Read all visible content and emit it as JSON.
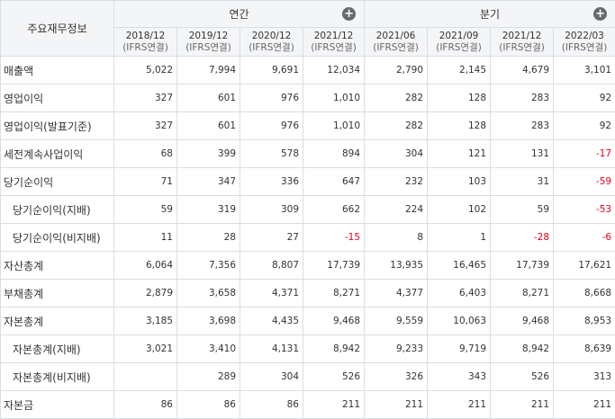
{
  "table": {
    "corner_label": "주요재무정보",
    "groups": [
      {
        "label": "연간",
        "add_icon": "plus-circle-icon"
      },
      {
        "label": "분기",
        "add_icon": "plus-circle-icon"
      }
    ],
    "periods": [
      {
        "date": "2018/12",
        "basis": "(IFRS연결)"
      },
      {
        "date": "2019/12",
        "basis": "(IFRS연결)"
      },
      {
        "date": "2020/12",
        "basis": "(IFRS연결)"
      },
      {
        "date": "2021/12",
        "basis": "(IFRS연결)"
      },
      {
        "date": "2021/06",
        "basis": "(IFRS연결)"
      },
      {
        "date": "2021/09",
        "basis": "(IFRS연결)"
      },
      {
        "date": "2021/12",
        "basis": "(IFRS연결)"
      },
      {
        "date": "2022/03",
        "basis": "(IFRS연결)"
      }
    ],
    "negative_color": "#e8001c",
    "rows": [
      {
        "label": "매출액",
        "indent": false,
        "values": [
          "5,022",
          "7,994",
          "9,691",
          "12,034",
          "2,790",
          "2,145",
          "4,679",
          "3,101"
        ]
      },
      {
        "label": "영업이익",
        "indent": false,
        "values": [
          "327",
          "601",
          "976",
          "1,010",
          "282",
          "128",
          "283",
          "92"
        ]
      },
      {
        "label": "영업이익(발표기준)",
        "indent": false,
        "values": [
          "327",
          "601",
          "976",
          "1,010",
          "282",
          "128",
          "283",
          "92"
        ]
      },
      {
        "label": "세전계속사업이익",
        "indent": false,
        "values": [
          "68",
          "399",
          "578",
          "894",
          "304",
          "121",
          "131",
          "-17"
        ]
      },
      {
        "label": "당기순이익",
        "indent": false,
        "values": [
          "71",
          "347",
          "336",
          "647",
          "232",
          "103",
          "31",
          "-59"
        ]
      },
      {
        "label": "당기순이익(지배)",
        "indent": true,
        "values": [
          "59",
          "319",
          "309",
          "662",
          "224",
          "102",
          "59",
          "-53"
        ]
      },
      {
        "label": "당기순이익(비지배)",
        "indent": true,
        "values": [
          "11",
          "28",
          "27",
          "-15",
          "8",
          "1",
          "-28",
          "-6"
        ]
      },
      {
        "label": "자산총계",
        "indent": false,
        "values": [
          "6,064",
          "7,356",
          "8,807",
          "17,739",
          "13,935",
          "16,465",
          "17,739",
          "17,621"
        ]
      },
      {
        "label": "부채총계",
        "indent": false,
        "values": [
          "2,879",
          "3,658",
          "4,371",
          "8,271",
          "4,377",
          "6,403",
          "8,271",
          "8,668"
        ]
      },
      {
        "label": "자본총계",
        "indent": false,
        "values": [
          "3,185",
          "3,698",
          "4,435",
          "9,468",
          "9,559",
          "10,063",
          "9,468",
          "8,953"
        ]
      },
      {
        "label": "자본총계(지배)",
        "indent": true,
        "values": [
          "3,021",
          "3,410",
          "4,131",
          "8,942",
          "9,233",
          "9,719",
          "8,942",
          "8,639"
        ]
      },
      {
        "label": "자본총계(비지배)",
        "indent": true,
        "values": [
          "",
          "289",
          "304",
          "526",
          "326",
          "343",
          "526",
          "313"
        ]
      },
      {
        "label": "자본금",
        "indent": false,
        "values": [
          "86",
          "86",
          "86",
          "211",
          "211",
          "211",
          "211",
          "211"
        ]
      }
    ]
  }
}
